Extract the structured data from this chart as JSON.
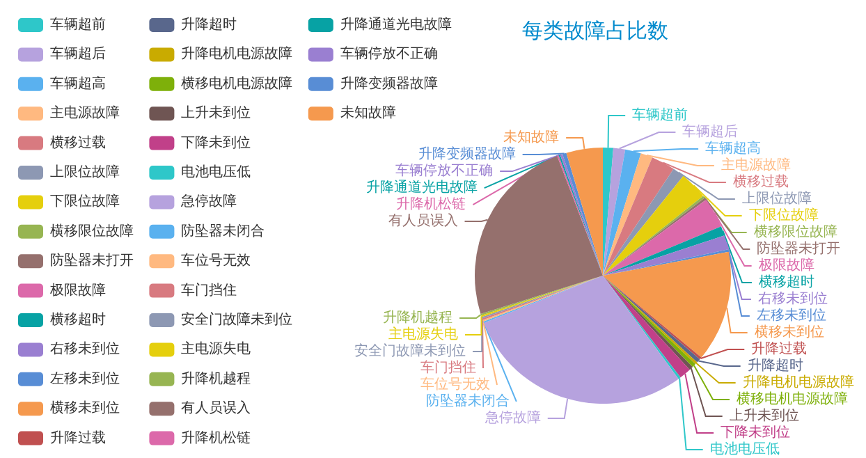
{
  "chart_data": {
    "type": "pie",
    "title": "每类故障占比数",
    "legend": "left",
    "categories": [
      "车辆超前",
      "车辆超后",
      "车辆超高",
      "主电源故障",
      "横移过载",
      "上限位故障",
      "下限位故障",
      "横移限位故障",
      "防坠器未打开",
      "极限故障",
      "横移超时",
      "右移未到位",
      "左移未到位",
      "横移未到位",
      "升降过载",
      "升降超时",
      "升降电机电源故障",
      "横移电机电源故障",
      "上升未到位",
      "下降未到位",
      "电池电压低",
      "急停故障",
      "防坠器未闭合",
      "车位号无效",
      "车门挡住",
      "安全门故障未到位",
      "主电源失电",
      "升降机越程",
      "有人员误入",
      "升降机松链",
      "升降通道光电故障",
      "车辆停放不正确",
      "升降变频器故障",
      "未知故障"
    ],
    "values": [
      1.3,
      1.5,
      2,
      1.5,
      3,
      1.5,
      3.5,
      0.3,
      0.3,
      3.8,
      1.2,
      1.8,
      0.3,
      14,
      0.3,
      0.5,
      0.3,
      0.5,
      0.5,
      1.5,
      0.3,
      29,
      0.2,
      0.2,
      0.2,
      0.2,
      0.2,
      0.2,
      24,
      0.2,
      0.2,
      0.3,
      0.5,
      4.6
    ],
    "colors": [
      "#2ec7c9",
      "#b6a2de",
      "#5ab1ef",
      "#ffb980",
      "#d87a80",
      "#8d98b3",
      "#e5cf0d",
      "#97b552",
      "#95706d",
      "#dc69aa",
      "#07a2a4",
      "#9a7fd1",
      "#588dd5",
      "#f5994e",
      "#c05050",
      "#59678c",
      "#c9ab00",
      "#7eb00a",
      "#6f5553",
      "#c14089",
      "#2ec7c9",
      "#b6a2de",
      "#5ab1ef",
      "#ffb980",
      "#d87a80",
      "#8d98b3",
      "#e5cf0d",
      "#97b552",
      "#95706d",
      "#dc69aa",
      "#07a2a4",
      "#9a7fd1",
      "#588dd5",
      "#f5994e"
    ]
  }
}
